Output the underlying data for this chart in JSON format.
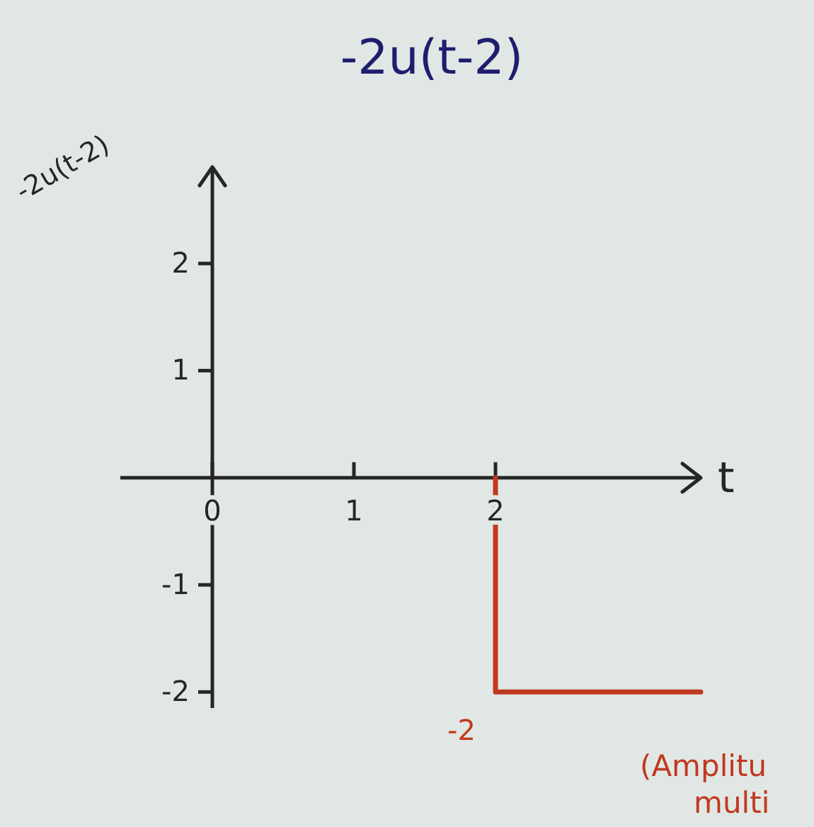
{
  "chart_data": {
    "type": "step",
    "title": "-2u(t-2)",
    "ylabel": "-2u(t-2)",
    "xlabel": "t",
    "xlim": [
      -0.65,
      3.45
    ],
    "ylim": [
      -2.15,
      2.9
    ],
    "xticks": [
      0,
      1,
      2
    ],
    "yticks": [
      -2,
      -1,
      1,
      2
    ],
    "x": [
      2,
      3.45
    ],
    "series": [
      {
        "color": "#c0391f",
        "values": [
          0,
          -2
        ]
      }
    ],
    "annotations": [
      {
        "text": "-2",
        "x": 2,
        "y": -2
      },
      "(Amplitu\nmulti"
    ]
  }
}
